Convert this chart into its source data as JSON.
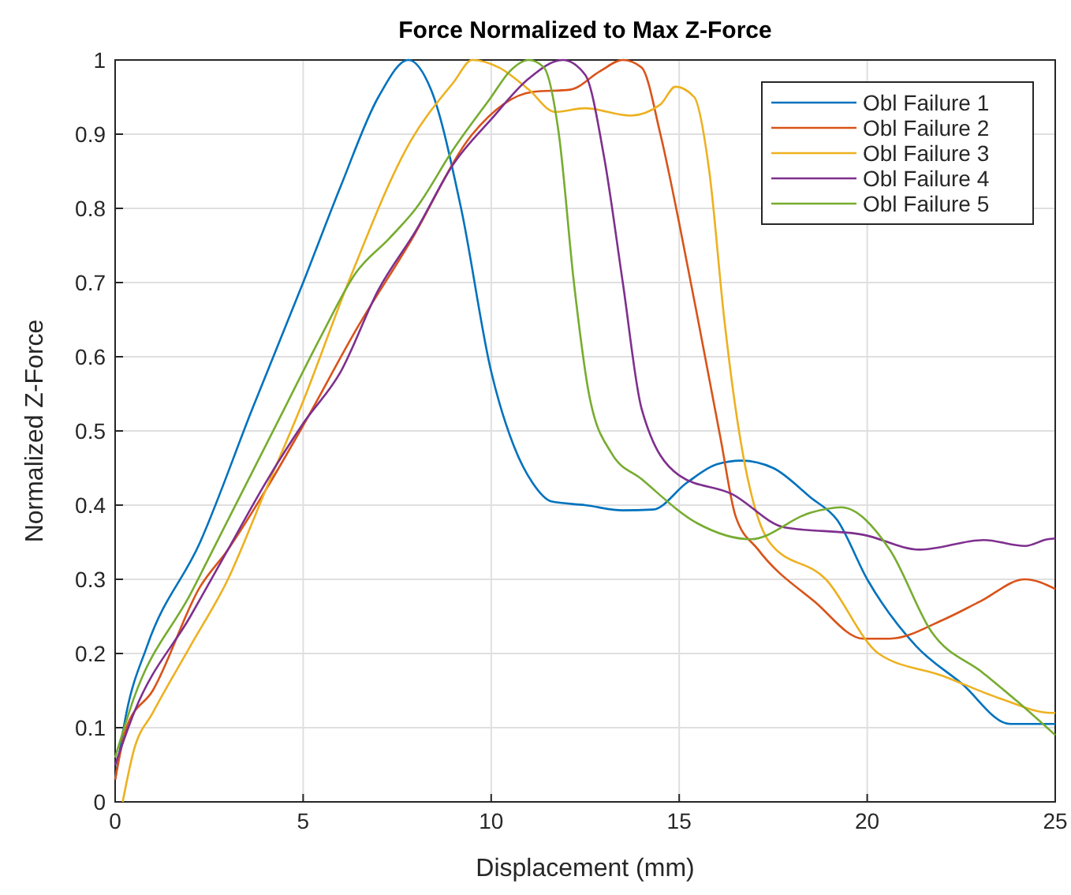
{
  "chart_data": {
    "type": "line",
    "title": "Force Normalized to Max Z-Force",
    "xlabel": "Displacement (mm)",
    "ylabel": "Normalized Z-Force",
    "xlim": [
      0,
      25
    ],
    "ylim": [
      0,
      1
    ],
    "xticks": [
      0,
      5,
      10,
      15,
      20,
      25
    ],
    "yticks": [
      0,
      0.1,
      0.2,
      0.3,
      0.4,
      0.5,
      0.6,
      0.7,
      0.8,
      0.9,
      1
    ],
    "grid": true,
    "legend": "top right",
    "line_style": "solid",
    "marker": "none",
    "series": [
      {
        "name": "Obl Failure 1",
        "color": "#0072bd",
        "x": [
          0,
          0.3,
          0.85,
          2.26,
          3.65,
          5,
          6,
          7,
          7.8,
          8.4,
          9.2,
          10,
          10.6,
          11.1,
          11.6,
          12.5,
          13.5,
          14.3,
          15.2,
          16,
          16.65,
          17.5,
          18.5,
          19.2,
          20,
          21.3,
          22.5,
          23.8,
          25
        ],
        "values": [
          0.03,
          0.12,
          0.21,
          0.35,
          0.53,
          0.7,
          0.83,
          0.95,
          1,
          0.96,
          0.8,
          0.58,
          0.48,
          0.43,
          0.405,
          0.4,
          0.393,
          0.394,
          0.43,
          0.455,
          0.46,
          0.45,
          0.41,
          0.38,
          0.3,
          0.21,
          0.16,
          0.105,
          0.105
        ]
      },
      {
        "name": "Obl Failure 2",
        "color": "#d95319",
        "x": [
          0,
          0.3,
          1,
          2.26,
          3,
          4,
          5.03,
          6.45,
          7.85,
          9.5,
          11.1,
          12.1,
          12.9,
          13.5,
          14,
          14.5,
          15,
          15.5,
          16.1,
          16.5,
          17.1,
          18.6,
          19.9,
          20.6,
          22,
          23,
          24.2,
          25
        ],
        "values": [
          0.03,
          0.1,
          0.15,
          0.29,
          0.34,
          0.42,
          0.51,
          0.64,
          0.755,
          0.9,
          0.957,
          0.96,
          0.985,
          1,
          0.99,
          0.9,
          0.78,
          0.65,
          0.49,
          0.385,
          0.34,
          0.27,
          0.22,
          0.22,
          0.245,
          0.27,
          0.3,
          0.287
        ]
      },
      {
        "name": "Obl Failure 3",
        "color": "#edb120",
        "x": [
          0.2,
          0.5,
          1,
          2,
          3,
          4,
          5,
          6.2,
          7.85,
          9,
          9.5,
          10.2,
          11,
          11.7,
          12.5,
          13.7,
          14.5,
          14.9,
          15.4,
          15.8,
          16.2,
          16.5,
          17.4,
          18.9,
          20.3,
          22,
          23.5,
          24.9,
          25
        ],
        "values": [
          0,
          0.07,
          0.12,
          0.21,
          0.3,
          0.42,
          0.54,
          0.7,
          0.89,
          0.97,
          1,
          0.99,
          0.96,
          0.93,
          0.935,
          0.925,
          0.94,
          0.964,
          0.95,
          0.85,
          0.65,
          0.53,
          0.35,
          0.3,
          0.2,
          0.17,
          0.14,
          0.12,
          0.12
        ]
      },
      {
        "name": "Obl Failure 4",
        "color": "#7e2f8e",
        "x": [
          0,
          0.5,
          2,
          3,
          4,
          5,
          6,
          7,
          8,
          9,
          10,
          11,
          11.9,
          12.5,
          13,
          13.5,
          14,
          15,
          16.4,
          17.8,
          19.9,
          21.4,
          23.1,
          24.2,
          24.8,
          25
        ],
        "values": [
          0.05,
          0.12,
          0.25,
          0.34,
          0.43,
          0.51,
          0.58,
          0.69,
          0.77,
          0.86,
          0.92,
          0.975,
          1,
          0.98,
          0.87,
          0.7,
          0.53,
          0.44,
          0.415,
          0.37,
          0.36,
          0.34,
          0.353,
          0.345,
          0.354,
          0.355
        ]
      },
      {
        "name": "Obl Failure 5",
        "color": "#77ac30",
        "x": [
          0,
          0.5,
          2,
          3,
          4.5,
          5.5,
          6.4,
          7.3,
          8,
          9,
          10,
          10.5,
          11,
          11.4,
          11.8,
          12.2,
          12.6,
          13.2,
          14,
          15.5,
          16.9,
          18.5,
          19.3,
          20.6,
          21.7,
          23.1,
          24,
          25
        ],
        "values": [
          0.06,
          0.14,
          0.28,
          0.38,
          0.53,
          0.63,
          0.713,
          0.76,
          0.8,
          0.88,
          0.95,
          0.985,
          1,
          0.99,
          0.9,
          0.7,
          0.55,
          0.47,
          0.435,
          0.375,
          0.354,
          0.39,
          0.397,
          0.34,
          0.23,
          0.173,
          0.135,
          0.09
        ]
      }
    ]
  }
}
